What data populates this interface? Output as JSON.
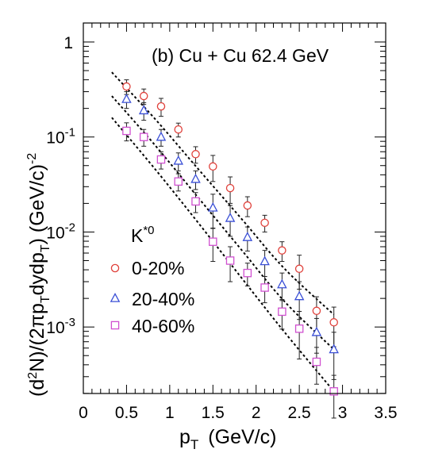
{
  "chart_data": {
    "type": "scatter",
    "panel_label": "(b) Cu + Cu 62.4 GeV",
    "xlabel": {
      "main": "p",
      "sub": "T",
      "unit": "(GeV/c)"
    },
    "ylabel": {
      "p1": "(d",
      "p1sup": "2",
      "p2": "N)/(2πp",
      "p2sub": "T",
      "p3": "dydp",
      "p3sub": "T",
      "p4": ") (GeV/c)",
      "p4sup": "-2"
    },
    "xlim": [
      0,
      3.5
    ],
    "ylim_log10": [
      -3.7,
      0.2
    ],
    "yscale": "log",
    "xticks": [
      {
        "v": 0,
        "label": "0"
      },
      {
        "v": 0.5,
        "label": "0.5"
      },
      {
        "v": 1,
        "label": "1"
      },
      {
        "v": 1.5,
        "label": "1.5"
      },
      {
        "v": 2,
        "label": "2"
      },
      {
        "v": 2.5,
        "label": "2.5"
      },
      {
        "v": 3,
        "label": "3"
      },
      {
        "v": 3.5,
        "label": "3.5"
      }
    ],
    "yticks": [
      {
        "e": 0,
        "base": "1",
        "exp": ""
      },
      {
        "e": -1,
        "base": "10",
        "exp": "-1"
      },
      {
        "e": -2,
        "base": "10",
        "exp": "-2"
      },
      {
        "e": -3,
        "base": "10",
        "exp": "-3"
      }
    ],
    "legend": {
      "title": "K",
      "title_sup": "*0",
      "placement": "center-left"
    },
    "series": [
      {
        "name": "0-20%",
        "marker": "circle",
        "color": "#e0403a",
        "x": [
          0.5,
          0.7,
          0.9,
          1.1,
          1.3,
          1.5,
          1.7,
          1.9,
          2.1,
          2.3,
          2.5,
          2.7,
          2.9
        ],
        "y": [
          0.34,
          0.27,
          0.21,
          0.12,
          0.066,
          0.049,
          0.029,
          0.019,
          0.0125,
          0.0064,
          0.0041,
          0.00148,
          0.00112
        ],
        "yerr": [
          0.06,
          0.05,
          0.045,
          0.02,
          0.013,
          0.015,
          0.009,
          0.0045,
          0.0025,
          0.0015,
          0.0016,
          0.0006,
          0.0005
        ],
        "fit": [
          0.48,
          0.155,
          0.046,
          0.0138,
          0.0041,
          0.00135
        ]
      },
      {
        "name": "20-40%",
        "marker": "triangle",
        "color": "#3a4fd6",
        "x": [
          0.5,
          0.7,
          0.9,
          1.1,
          1.3,
          1.5,
          1.7,
          1.9,
          2.1,
          2.3,
          2.5,
          2.7,
          2.9
        ],
        "y": [
          0.25,
          0.19,
          0.1,
          0.056,
          0.036,
          0.018,
          0.014,
          0.0088,
          0.0049,
          0.0028,
          0.0021,
          0.00088,
          0.00058
        ],
        "yerr": [
          0.05,
          0.04,
          0.02,
          0.012,
          0.008,
          0.007,
          0.005,
          0.0025,
          0.0015,
          0.0009,
          0.0009,
          0.00035,
          0.0003
        ],
        "fit": [
          0.27,
          0.082,
          0.023,
          0.0065,
          0.00185,
          0.00058
        ]
      },
      {
        "name": "40-60%",
        "marker": "square",
        "color": "#d050d0",
        "x": [
          0.5,
          0.7,
          0.9,
          1.1,
          1.3,
          1.5,
          1.7,
          1.9,
          2.1,
          2.3,
          2.5,
          2.7,
          2.9
        ],
        "y": [
          0.116,
          0.1,
          0.058,
          0.034,
          0.021,
          0.0079,
          0.005,
          0.0037,
          0.0026,
          0.00145,
          0.00096,
          0.00043,
          0.00021
        ],
        "yerr": [
          0.025,
          0.02,
          0.012,
          0.007,
          0.005,
          0.003,
          0.002,
          0.001,
          0.0008,
          0.0005,
          0.0005,
          0.00018,
          0.0001
        ],
        "fit": [
          0.16,
          0.046,
          0.0125,
          0.0033,
          0.00088,
          0.00021
        ]
      }
    ],
    "fit_x": [
      0.33,
      0.83,
      1.33,
      1.83,
      2.33,
      2.9
    ],
    "fit_style": "dotted"
  }
}
